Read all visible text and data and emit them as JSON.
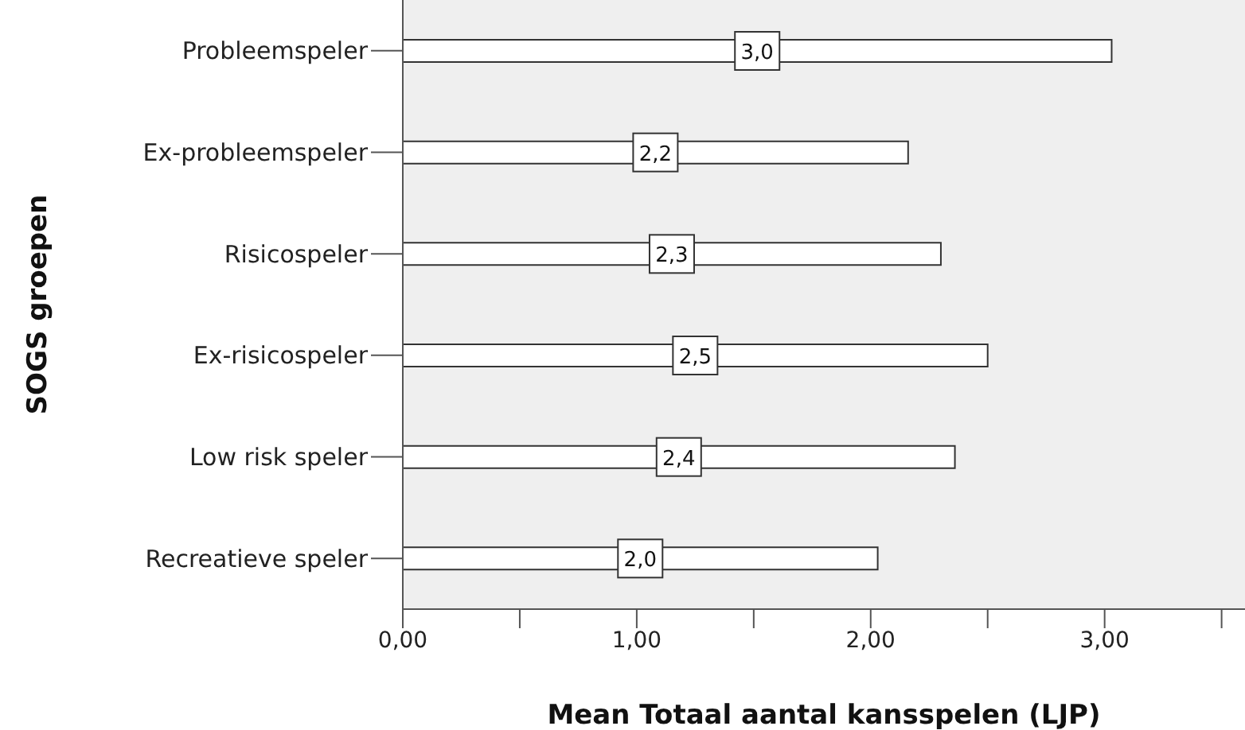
{
  "chart_data": {
    "type": "bar",
    "orientation": "horizontal",
    "xlabel": "Mean Totaal aantal kansspelen (LJP)",
    "ylabel": "SOGS groepen",
    "categories": [
      "Probleemspeler",
      "Ex-probleemspeler",
      "Risicospeler",
      "Ex-risicospeler",
      "Low risk speler",
      "Recreatieve speler"
    ],
    "values": [
      3.03,
      2.16,
      2.3,
      2.5,
      2.36,
      2.03
    ],
    "value_labels": [
      "3,0",
      "2,2",
      "2,3",
      "2,5",
      "2,4",
      "2,0"
    ],
    "color": "#ffffff",
    "xlim": [
      0,
      3.6
    ],
    "xticks": [
      {
        "value": 0,
        "label": "0,00"
      },
      {
        "value": 0.5,
        "label": null
      },
      {
        "value": 1,
        "label": "1,00"
      },
      {
        "value": 1.5,
        "label": null
      },
      {
        "value": 2,
        "label": "2,00"
      },
      {
        "value": 2.5,
        "label": null
      },
      {
        "value": 3,
        "label": "3,00"
      },
      {
        "value": 3.5,
        "label": null
      }
    ],
    "grid": false,
    "legend": false
  }
}
